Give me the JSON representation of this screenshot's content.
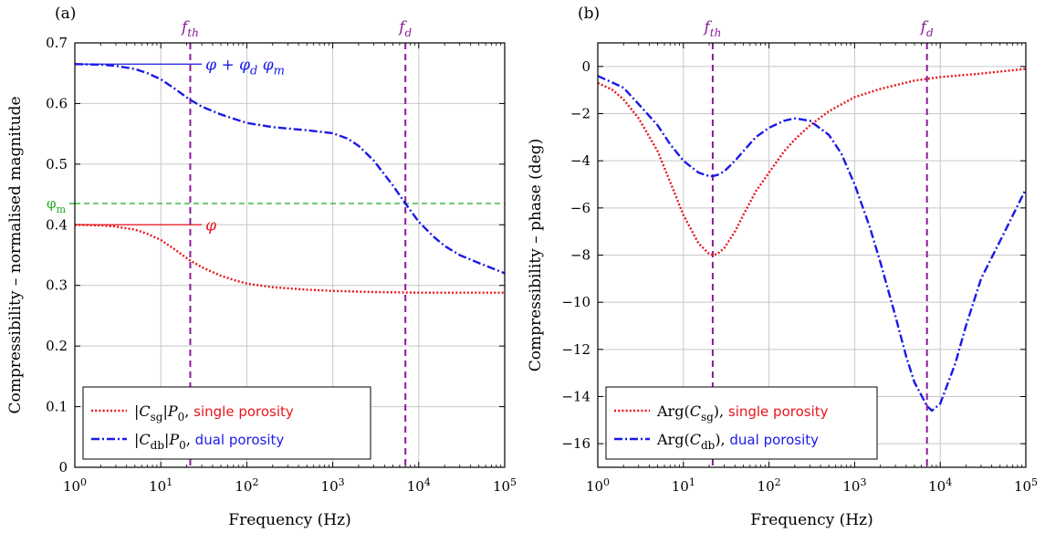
{
  "colors": {
    "single": "#e8151b",
    "dual": "#1a1ae6",
    "matrix": "#22aa22",
    "marker": "#8b1a9b",
    "grid": "#c8c8c8"
  },
  "chart_data": [
    {
      "type": "line",
      "panel_label": "(a)",
      "xlabel": "Frequency (Hz)",
      "ylabel": "Compressibility – normalised magnitude",
      "xscale": "log",
      "xlim": [
        1,
        100000
      ],
      "ylim": [
        0,
        0.7
      ],
      "grid": true,
      "x_ticks": [
        1,
        10,
        100,
        1000,
        10000,
        100000
      ],
      "x_tick_labels": [
        "10^0",
        "10^1",
        "10^2",
        "10^3",
        "10^4",
        "10^5"
      ],
      "y_ticks": [
        0,
        0.1,
        0.2,
        0.3,
        0.4,
        0.5,
        0.6,
        0.7
      ],
      "y_tick_labels": [
        "0",
        "0.1",
        "0.2",
        "0.3",
        "0.4",
        "0.5",
        "0.6",
        "0.7"
      ],
      "legend_position": "bottom-left",
      "vlines": [
        {
          "x": 22,
          "label": "f_th"
        },
        {
          "x": 7000,
          "label": "f_d"
        }
      ],
      "hlines": [
        {
          "y": 0.435,
          "label": "φ_m"
        }
      ],
      "annotations": [
        {
          "y": 0.665,
          "x_end": 30,
          "label": "φ + φ_d φ_m",
          "series": "dual"
        },
        {
          "y": 0.4,
          "x_end": 30,
          "label": "φ",
          "series": "single"
        }
      ],
      "series": [
        {
          "name": "single",
          "legend_math": "|C_sg|P_0,",
          "legend_text": "single porosity",
          "style": "dotted",
          "x": [
            1,
            2,
            3,
            5,
            7,
            10,
            15,
            20,
            22,
            30,
            50,
            70,
            100,
            200,
            500,
            1000,
            3000,
            10000,
            30000,
            100000
          ],
          "y": [
            0.4,
            0.399,
            0.397,
            0.392,
            0.385,
            0.375,
            0.358,
            0.345,
            0.341,
            0.33,
            0.316,
            0.309,
            0.303,
            0.297,
            0.293,
            0.291,
            0.289,
            0.288,
            0.288,
            0.288
          ]
        },
        {
          "name": "dual",
          "legend_math": "|C_db|P_0,",
          "legend_text": "dual porosity",
          "style": "dashdot",
          "x": [
            1,
            2,
            3,
            5,
            7,
            10,
            15,
            20,
            22,
            30,
            50,
            70,
            100,
            200,
            500,
            1000,
            1500,
            2000,
            3000,
            5000,
            7000,
            10000,
            15000,
            20000,
            30000,
            50000,
            100000
          ],
          "y": [
            0.665,
            0.664,
            0.662,
            0.657,
            0.65,
            0.64,
            0.623,
            0.61,
            0.606,
            0.595,
            0.582,
            0.575,
            0.568,
            0.561,
            0.556,
            0.551,
            0.542,
            0.53,
            0.506,
            0.465,
            0.435,
            0.405,
            0.38,
            0.365,
            0.35,
            0.337,
            0.32
          ]
        }
      ]
    },
    {
      "type": "line",
      "panel_label": "(b)",
      "xlabel": "Frequency (Hz)",
      "ylabel": "Compressibility – phase (deg)",
      "xscale": "log",
      "xlim": [
        1,
        100000
      ],
      "ylim": [
        -17,
        1
      ],
      "grid": true,
      "x_ticks": [
        1,
        10,
        100,
        1000,
        10000,
        100000
      ],
      "x_tick_labels": [
        "10^0",
        "10^1",
        "10^2",
        "10^3",
        "10^4",
        "10^5"
      ],
      "y_ticks": [
        0,
        -2,
        -4,
        -6,
        -8,
        -10,
        -12,
        -14,
        -16
      ],
      "y_tick_labels": [
        "0",
        "−2",
        "−4",
        "−6",
        "−8",
        "−10",
        "−12",
        "−14",
        "−16"
      ],
      "legend_position": "bottom-left",
      "vlines": [
        {
          "x": 22,
          "label": "f_th"
        },
        {
          "x": 7000,
          "label": "f_d"
        }
      ],
      "series": [
        {
          "name": "single",
          "legend_math": "Arg(C_sg),",
          "legend_text": "single porosity",
          "style": "dotted",
          "x": [
            1,
            1.5,
            2,
            3,
            5,
            7,
            10,
            15,
            20,
            22,
            25,
            30,
            40,
            50,
            70,
            100,
            150,
            200,
            300,
            500,
            1000,
            2000,
            5000,
            10000,
            30000,
            100000
          ],
          "y": [
            -0.7,
            -1.0,
            -1.4,
            -2.2,
            -3.6,
            -4.9,
            -6.3,
            -7.5,
            -7.95,
            -8.0,
            -7.95,
            -7.7,
            -7.0,
            -6.3,
            -5.3,
            -4.5,
            -3.6,
            -3.1,
            -2.5,
            -1.9,
            -1.3,
            -0.95,
            -0.6,
            -0.45,
            -0.3,
            -0.1
          ]
        },
        {
          "name": "dual",
          "legend_math": "Arg(C_db),",
          "legend_text": "dual porosity",
          "style": "dashdot",
          "x": [
            1,
            2,
            3,
            5,
            7,
            10,
            15,
            20,
            22,
            25,
            30,
            40,
            50,
            70,
            100,
            150,
            200,
            300,
            500,
            700,
            1000,
            1500,
            2000,
            3000,
            4000,
            5000,
            7000,
            8000,
            10000,
            15000,
            20000,
            30000,
            50000,
            100000
          ],
          "y": [
            -0.4,
            -0.9,
            -1.6,
            -2.5,
            -3.3,
            -4.0,
            -4.5,
            -4.65,
            -4.65,
            -4.6,
            -4.45,
            -4.0,
            -3.6,
            -3.0,
            -2.6,
            -2.3,
            -2.2,
            -2.3,
            -2.9,
            -3.7,
            -5.0,
            -6.8,
            -8.3,
            -10.6,
            -12.3,
            -13.4,
            -14.4,
            -14.6,
            -14.3,
            -12.6,
            -11.0,
            -9.0,
            -7.4,
            -5.2
          ]
        }
      ]
    }
  ]
}
